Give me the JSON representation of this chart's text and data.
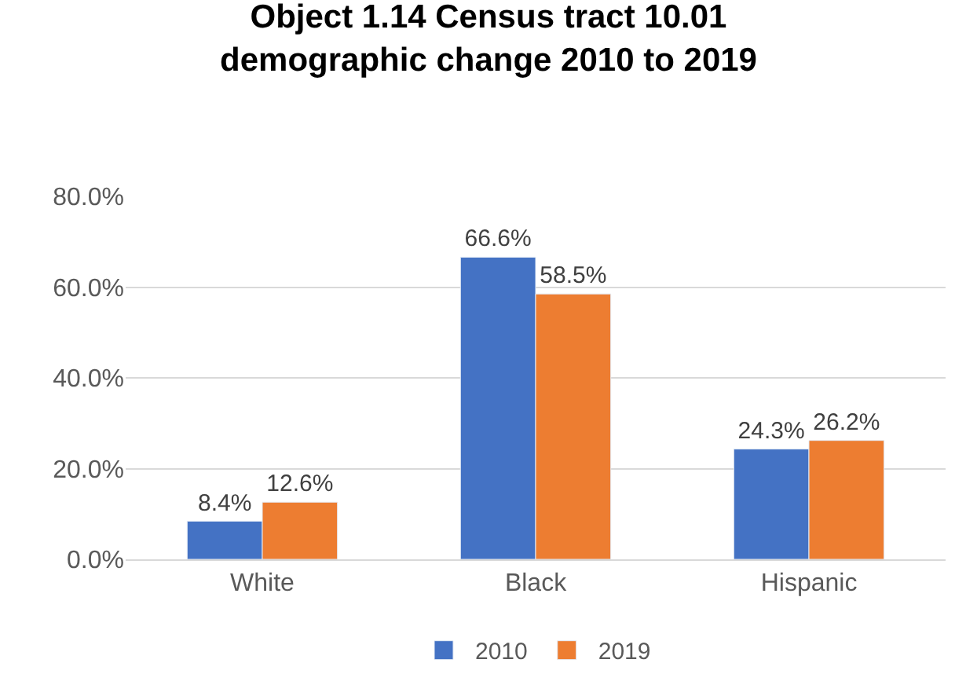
{
  "chart_data": {
    "type": "bar",
    "title": "Object 1.14 Census tract 10.01\ndemographic change 2010 to 2019",
    "categories": [
      "White",
      "Black",
      "Hispanic"
    ],
    "series": [
      {
        "name": "2010",
        "color": "#4472c4",
        "values": [
          8.4,
          66.6,
          24.3
        ],
        "value_labels": [
          "8.4%",
          "66.6%",
          "24.3%"
        ]
      },
      {
        "name": "2019",
        "color": "#ed7d31",
        "values": [
          12.6,
          58.5,
          26.2
        ],
        "value_labels": [
          "12.6%",
          "58.5%",
          "26.2%"
        ]
      }
    ],
    "ylim": [
      0,
      80
    ],
    "yticks": [
      {
        "value": 0,
        "label": "0.0%"
      },
      {
        "value": 20,
        "label": "20.0%"
      },
      {
        "value": 40,
        "label": "40.0%"
      },
      {
        "value": 60,
        "label": "60.0%"
      },
      {
        "value": 80,
        "label": "80.0%"
      }
    ],
    "grid": "y",
    "legend": "bottom"
  }
}
